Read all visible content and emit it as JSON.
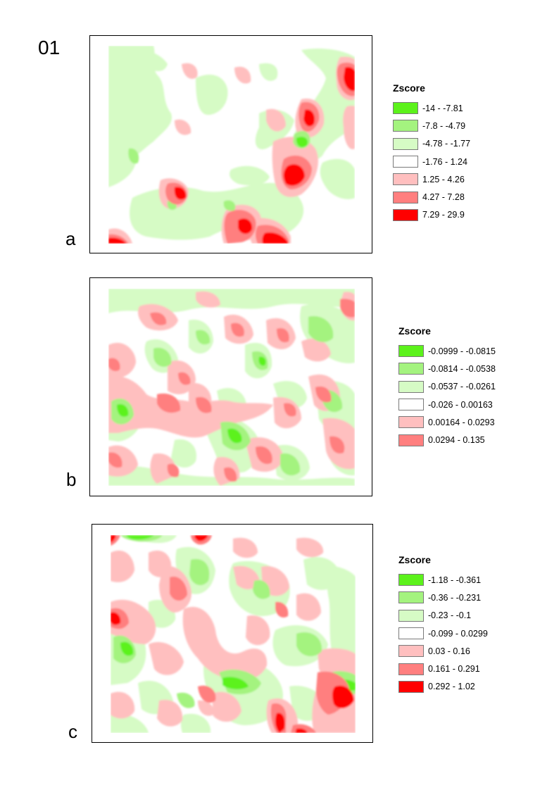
{
  "page_label": "01",
  "maps": [
    {
      "id": "a",
      "letter": "a",
      "legend_title": "Zscore",
      "classes": [
        {
          "label": "-14 - -7.81",
          "color": "#5cf21b"
        },
        {
          "label": "-7.8 - -4.79",
          "color": "#a4f37f"
        },
        {
          "label": "-4.78 - -1.77",
          "color": "#d6fbc5"
        },
        {
          "label": "-1.76 - 1.24",
          "color": "#ffffff"
        },
        {
          "label": "1.25 - 4.26",
          "color": "#ffbfbf"
        },
        {
          "label": "4.27 - 7.28",
          "color": "#ff7f7f"
        },
        {
          "label": "7.29 - 29.9",
          "color": "#ff0000"
        }
      ]
    },
    {
      "id": "b",
      "letter": "b",
      "legend_title": "Zscore",
      "classes": [
        {
          "label": "-0.0999 - -0.0815",
          "color": "#5cf21b"
        },
        {
          "label": "-0.0814 - -0.0538",
          "color": "#a4f37f"
        },
        {
          "label": "-0.0537 - -0.0261",
          "color": "#d6fbc5"
        },
        {
          "label": "-0.026 - 0.00163",
          "color": "#ffffff"
        },
        {
          "label": "0.00164 - 0.0293",
          "color": "#ffbfbf"
        },
        {
          "label": "0.0294 - 0.135",
          "color": "#ff7f7f"
        }
      ]
    },
    {
      "id": "c",
      "letter": "c",
      "legend_title": "Zscore",
      "classes": [
        {
          "label": "-1.18 - -0.361",
          "color": "#5cf21b"
        },
        {
          "label": "-0.36 - -0.231",
          "color": "#a4f37f"
        },
        {
          "label": "-0.23 - -0.1",
          "color": "#d6fbc5"
        },
        {
          "label": "-0.099 - 0.0299",
          "color": "#ffffff"
        },
        {
          "label": "0.03 - 0.16",
          "color": "#ffbfbf"
        },
        {
          "label": "0.161 - 0.291",
          "color": "#ff7f7f"
        },
        {
          "label": "0.292 - 1.02",
          "color": "#ff0000"
        }
      ]
    }
  ]
}
